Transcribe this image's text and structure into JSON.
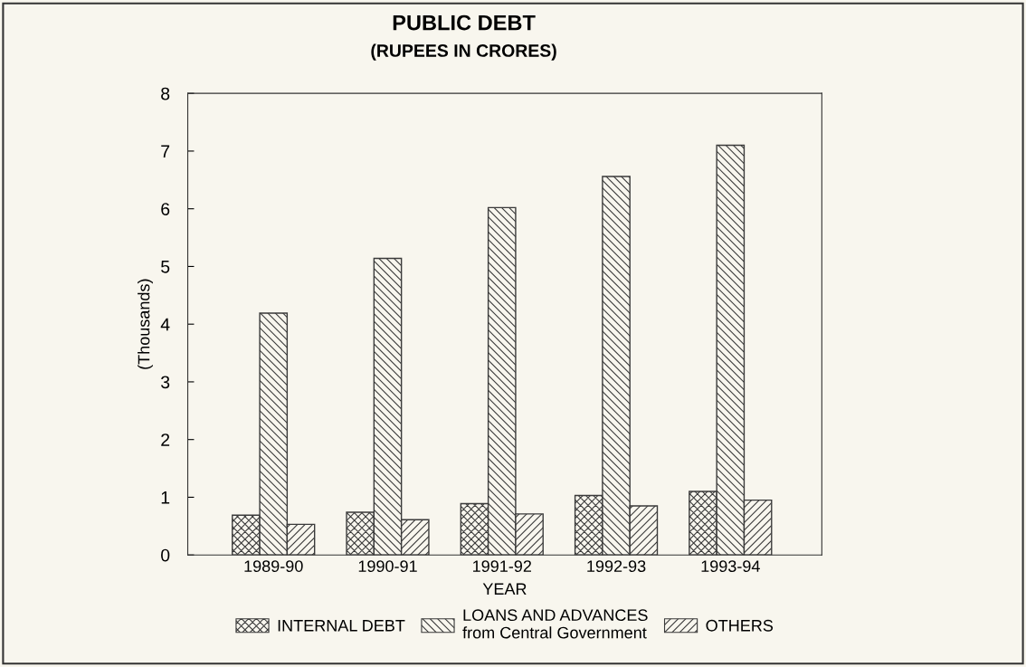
{
  "chart_data": {
    "type": "bar",
    "title": "PUBLIC DEBT",
    "subtitle": "(RUPEES IN CRORES)",
    "xlabel": "YEAR",
    "ylabel": "(Thousands)",
    "categories": [
      "1989-90",
      "1990-91",
      "1991-92",
      "1992-93",
      "1993-94"
    ],
    "series": [
      {
        "name": "INTERNAL DEBT",
        "color": "#3a3a3a",
        "values": [
          0.69,
          0.74,
          0.89,
          1.03,
          1.1
        ]
      },
      {
        "name": "LOANS AND ADVANCES\nfrom Central Government",
        "color": "#3a3a3a",
        "values": [
          4.19,
          5.14,
          6.02,
          6.56,
          7.1
        ]
      },
      {
        "name": "OTHERS",
        "color": "#3a3a3a",
        "values": [
          0.53,
          0.61,
          0.71,
          0.85,
          0.95
        ]
      }
    ],
    "ylim": [
      0,
      8
    ],
    "yticks": [
      0,
      1,
      2,
      3,
      4,
      5,
      6,
      7,
      8
    ],
    "grid": false,
    "legend": "bottom"
  }
}
